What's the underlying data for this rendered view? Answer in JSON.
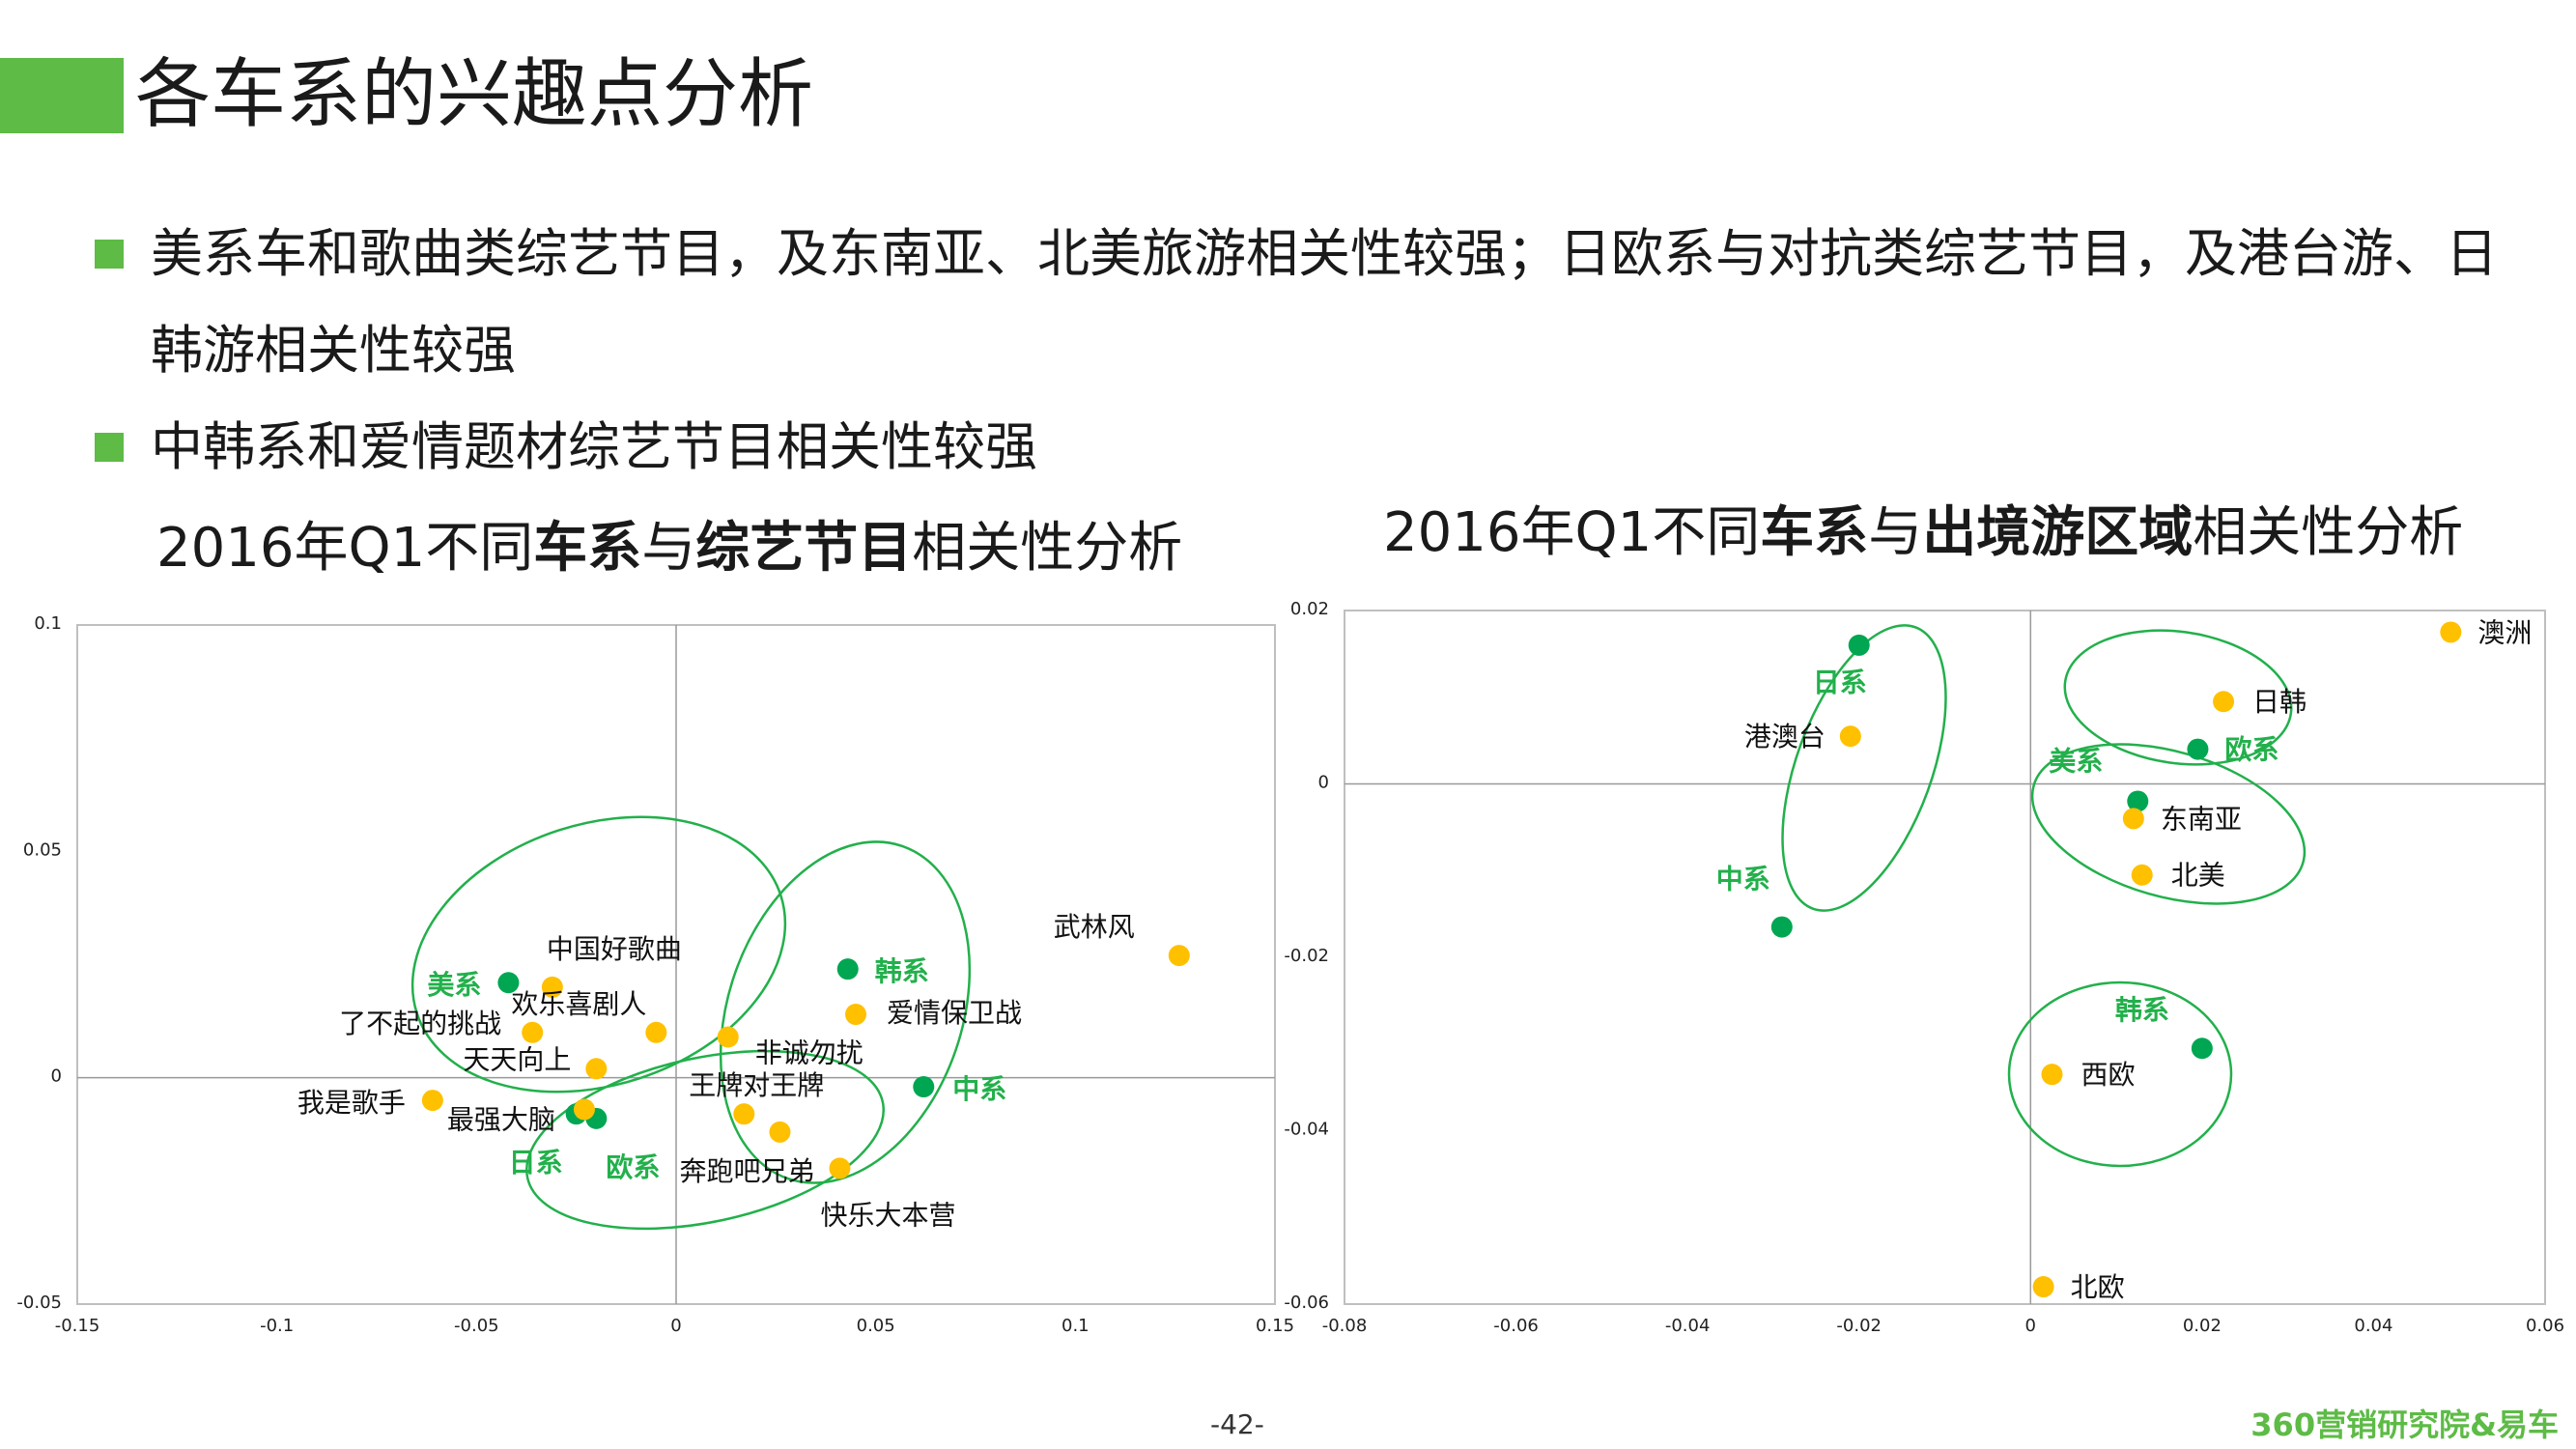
{
  "page": {
    "title": "各车系的兴趣点分析",
    "bullets": [
      "美系车和歌曲类综艺节目，及东南亚、北美旅游相关性较强；日欧系与对抗类综艺节目，及港台游、日韩游相关性较强",
      "中韩系和爱情题材综艺节目相关性较强"
    ],
    "page_number": "-42-",
    "footer_brand": "360营销研究院&易车",
    "colors": {
      "accent": "#5dbb46",
      "brand_point": "#00a651",
      "interest_point": "#ffc000",
      "ellipse": "#22b04b"
    }
  },
  "chart_data": [
    {
      "type": "scatter",
      "title_parts": [
        {
          "text": "2016年Q1不同",
          "bold": false
        },
        {
          "text": "车系",
          "bold": true
        },
        {
          "text": "与",
          "bold": false
        },
        {
          "text": "综艺节目",
          "bold": true
        },
        {
          "text": "相关性分析",
          "bold": false
        }
      ],
      "xlim": [
        -0.15,
        0.15
      ],
      "ylim": [
        -0.05,
        0.1
      ],
      "xticks": [
        -0.15,
        -0.1,
        -0.05,
        0,
        0.05,
        0.1,
        0.15
      ],
      "xtick_labels": [
        "-0.15",
        "-0.1",
        "-0.05",
        "0",
        "0.05",
        "0.1",
        "0.15"
      ],
      "yticks": [
        -0.05,
        0,
        0.05,
        0.1
      ],
      "ytick_labels": [
        "-0.05",
        "0",
        "0.05",
        "0.1"
      ],
      "grid": false,
      "series": [
        {
          "group": "brands",
          "points": [
            {
              "label": "美系",
              "x": -0.042,
              "y": 0.021
            },
            {
              "label": "韩系",
              "x": 0.043,
              "y": 0.024
            },
            {
              "label": "中系",
              "x": 0.062,
              "y": -0.002
            },
            {
              "label": "日系",
              "x": -0.025,
              "y": -0.008
            },
            {
              "label": "欧系",
              "x": -0.02,
              "y": -0.009
            }
          ]
        },
        {
          "group": "interests",
          "points": [
            {
              "label": "中国好歌曲",
              "x": -0.031,
              "y": 0.02
            },
            {
              "label": "欢乐喜剧人",
              "x": -0.005,
              "y": 0.01
            },
            {
              "label": "了不起的挑战",
              "x": -0.036,
              "y": 0.01
            },
            {
              "label": "天天向上",
              "x": -0.02,
              "y": 0.002
            },
            {
              "label": "我是歌手",
              "x": -0.061,
              "y": -0.005
            },
            {
              "label": "最强大脑",
              "x": -0.023,
              "y": -0.007
            },
            {
              "label": "非诚勿扰",
              "x": 0.013,
              "y": 0.009
            },
            {
              "label": "王牌对王牌",
              "x": 0.017,
              "y": -0.008
            },
            {
              "label": "奔跑吧兄弟",
              "x": 0.026,
              "y": -0.012
            },
            {
              "label": "快乐大本营",
              "x": 0.041,
              "y": -0.02
            },
            {
              "label": "爱情保卫战",
              "x": 0.045,
              "y": 0.014
            },
            {
              "label": "武林风",
              "x": 0.126,
              "y": 0.027
            }
          ]
        }
      ]
    },
    {
      "type": "scatter",
      "title_parts": [
        {
          "text": "2016年Q1不同",
          "bold": false
        },
        {
          "text": "车系",
          "bold": true
        },
        {
          "text": "与",
          "bold": false
        },
        {
          "text": "出境游区域",
          "bold": true
        },
        {
          "text": "相关性分析",
          "bold": false
        }
      ],
      "xlim": [
        -0.08,
        0.06
      ],
      "ylim": [
        -0.06,
        0.02
      ],
      "xticks": [
        -0.08,
        -0.06,
        -0.04,
        -0.02,
        0,
        0.02,
        0.04,
        0.06
      ],
      "xtick_labels": [
        "-0.08",
        "-0.06",
        "-0.04",
        "-0.02",
        "0",
        "0.02",
        "0.04",
        "0.06"
      ],
      "yticks": [
        -0.06,
        -0.04,
        -0.02,
        0,
        0.02
      ],
      "ytick_labels": [
        "-0.06",
        "-0.04",
        "-0.02",
        "0",
        "0.02"
      ],
      "grid": false,
      "series": [
        {
          "group": "brands",
          "points": [
            {
              "label": "日系",
              "x": -0.02,
              "y": 0.016
            },
            {
              "label": "欧系",
              "x": 0.0195,
              "y": 0.004
            },
            {
              "label": "美系",
              "x": 0.0125,
              "y": -0.002
            },
            {
              "label": "中系",
              "x": -0.029,
              "y": -0.0165
            },
            {
              "label": "韩系",
              "x": 0.02,
              "y": -0.0305
            }
          ]
        },
        {
          "group": "interests",
          "points": [
            {
              "label": "澳洲",
              "x": 0.049,
              "y": 0.0175
            },
            {
              "label": "日韩",
              "x": 0.0225,
              "y": 0.0095
            },
            {
              "label": "港澳台",
              "x": -0.021,
              "y": 0.0055
            },
            {
              "label": "东南亚",
              "x": 0.012,
              "y": -0.004
            },
            {
              "label": "北美",
              "x": 0.013,
              "y": -0.0105
            },
            {
              "label": "西欧",
              "x": 0.0025,
              "y": -0.0335
            },
            {
              "label": "北欧",
              "x": 0.0015,
              "y": -0.058
            }
          ]
        }
      ]
    }
  ]
}
